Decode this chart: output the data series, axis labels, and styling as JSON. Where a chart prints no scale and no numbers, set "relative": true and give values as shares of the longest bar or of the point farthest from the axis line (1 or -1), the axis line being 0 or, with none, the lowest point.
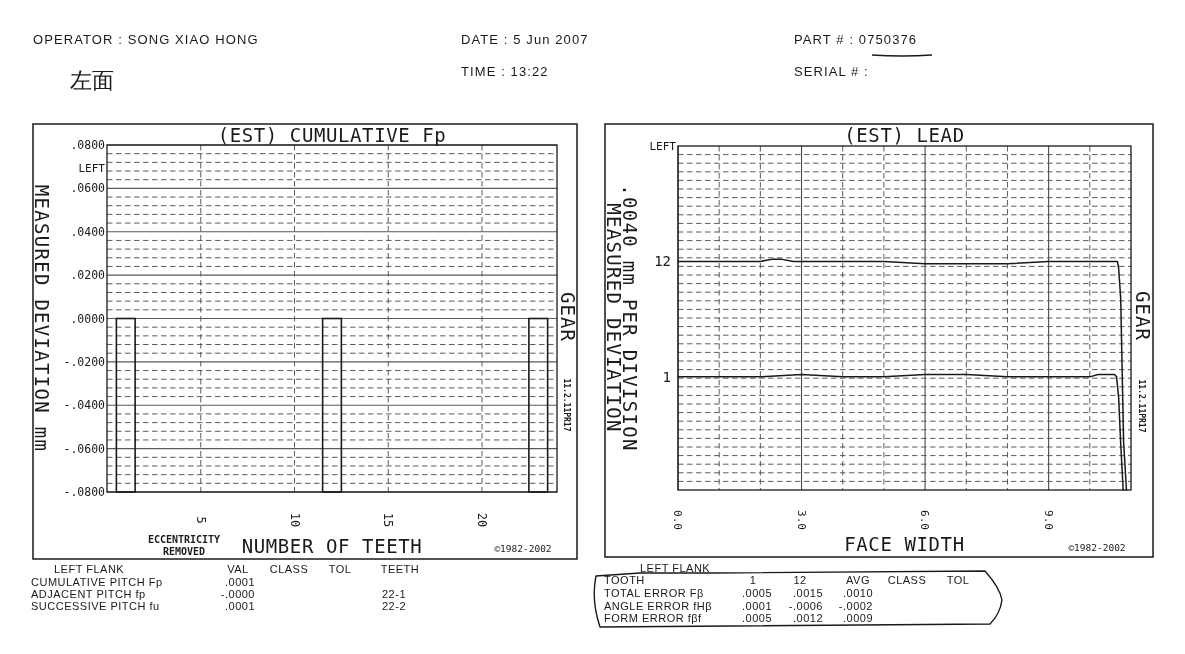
{
  "chart_data": [
    {
      "type": "bar",
      "title": "(EST) CUMULATIVE Fp",
      "xlabel": "NUMBER OF TEETH",
      "ylabel": "MEASURED DEVIATION mm",
      "x": [
        1,
        12,
        23
      ],
      "values": [
        -0.08,
        -0.08,
        -0.08
      ],
      "color": "#1a1a1a",
      "xlim": [
        0,
        24
      ],
      "xticks": [
        5,
        10,
        15,
        20
      ],
      "ylim": [
        -0.08,
        0.08
      ],
      "yticks": [
        {
          "value": -0.08,
          "label": "-.0800"
        },
        {
          "value": -0.076,
          "label": null
        },
        {
          "value": -0.072,
          "label": null
        },
        {
          "value": -0.068,
          "label": null
        },
        {
          "value": -0.064,
          "label": null
        },
        {
          "value": -0.06,
          "label": "-.0600"
        },
        {
          "value": -0.056,
          "label": null
        },
        {
          "value": -0.052,
          "label": null
        },
        {
          "value": -0.048,
          "label": null
        },
        {
          "value": -0.044,
          "label": null
        },
        {
          "value": -0.04,
          "label": "-.0400"
        },
        {
          "value": -0.036,
          "label": null
        },
        {
          "value": -0.032,
          "label": null
        },
        {
          "value": -0.028,
          "label": null
        },
        {
          "value": -0.024,
          "label": null
        },
        {
          "value": -0.02,
          "label": "-.0200"
        },
        {
          "value": -0.016,
          "label": null
        },
        {
          "value": -0.012,
          "label": null
        },
        {
          "value": -0.008,
          "label": null
        },
        {
          "value": -0.004,
          "label": null
        },
        {
          "value": 0,
          "label": ".0000"
        },
        {
          "value": 0.004,
          "label": null
        },
        {
          "value": 0.008,
          "label": null
        },
        {
          "value": 0.012,
          "label": null
        },
        {
          "value": 0.016,
          "label": null
        },
        {
          "value": 0.02,
          "label": ".0200"
        },
        {
          "value": 0.024,
          "label": null
        },
        {
          "value": 0.028,
          "label": null
        },
        {
          "value": 0.032,
          "label": null
        },
        {
          "value": 0.036,
          "label": null
        },
        {
          "value": 0.04,
          "label": ".0400"
        },
        {
          "value": 0.044,
          "label": null
        },
        {
          "value": 0.048,
          "label": null
        },
        {
          "value": 0.052,
          "label": null
        },
        {
          "value": 0.056,
          "label": null
        },
        {
          "value": 0.06,
          "label": ".0600"
        },
        {
          "value": 0.064,
          "label": null
        },
        {
          "value": 0.068,
          "label": null
        },
        {
          "value": 0.072,
          "label": null
        },
        {
          "value": 0.076,
          "label": null
        },
        {
          "value": 0.08,
          "label": ".0800"
        }
      ],
      "grid": true,
      "annotations": [
        "OPERATOR : SONG XIAO HONG",
        "DATE : 5 Jun 2007",
        "TIME : 13:22",
        "PART # : 0750376",
        "SERIAL # :",
        "左面",
        "LEFT",
        "GEAR",
        "11.2.11PR17",
        "ECCENTRICITY\nREMOVED",
        "©1982-2002",
        "LEFT FLANK",
        "VAL",
        "CLASS",
        "TOL",
        "TEETH",
        "CUMULATIVE PITCH Fp",
        ".0001",
        "ADJACENT PITCH fp",
        "-.0000",
        "22-1",
        "SUCCESSIVE PITCH fu",
        ".0001",
        "22-2"
      ]
    },
    {
      "type": "line",
      "title": "(EST) LEAD",
      "xlabel": "FACE WIDTH",
      "ylabel": ".0040 mm PER DIVISION\nMEASURED DEVIATION",
      "relative": true,
      "xlim": [
        0,
        11
      ],
      "xticks": [
        {
          "value": 0,
          "label": "0.0"
        },
        {
          "value": 1,
          "label": null
        },
        {
          "value": 2,
          "label": null
        },
        {
          "value": 3,
          "label": "3.0"
        },
        {
          "value": 4,
          "label": null
        },
        {
          "value": 5,
          "label": null
        },
        {
          "value": 6,
          "label": "6.0"
        },
        {
          "value": 7,
          "label": null
        },
        {
          "value": 8,
          "label": null
        },
        {
          "value": 9,
          "label": "9.0"
        },
        {
          "value": 10,
          "label": null
        }
      ],
      "grid": true,
      "series": [
        {
          "name": "12",
          "color": "#1a1a1a",
          "x": [
            0,
            1,
            2,
            2.3,
            2.5,
            2.8,
            3,
            4,
            5,
            6,
            7,
            8,
            9,
            10,
            10.67,
            10.7,
            10.75,
            10.82,
            10.89
          ],
          "values": [
            0.99,
            0.99,
            0.99,
            1.0,
            1.0,
            0.99,
            0.99,
            0.99,
            0.99,
            0.98,
            0.98,
            0.98,
            0.99,
            0.99,
            0.99,
            0.96,
            0.83,
            0.21,
            0
          ]
        },
        {
          "name": "1",
          "color": "#1a1a1a",
          "x": [
            0,
            1,
            2,
            3,
            4,
            5,
            6,
            7,
            8,
            9,
            10,
            10.2,
            10.4,
            10.6,
            10.65,
            10.7,
            10.75,
            10.81
          ],
          "values": [
            0.49,
            0.49,
            0.49,
            0.5,
            0.49,
            0.49,
            0.5,
            0.5,
            0.49,
            0.49,
            0.49,
            0.5,
            0.5,
            0.5,
            0.49,
            0.4,
            0.2,
            0
          ]
        }
      ],
      "annotations": [
        "LEFT",
        "GEAR",
        "11.2.11PR17",
        "©1982-2002",
        "LEFT FLANK",
        "TOOTH",
        "1",
        "12",
        "AVG",
        "CLASS",
        "TOL",
        "TOTAL ERROR Fβ",
        ".0005",
        ".0015",
        ".0010",
        "ANGLE ERROR fHβ",
        ".0001",
        "-.0006",
        "-.0002",
        "FORM ERROR fβf",
        ".0005",
        ".0012",
        ".0009"
      ]
    }
  ]
}
